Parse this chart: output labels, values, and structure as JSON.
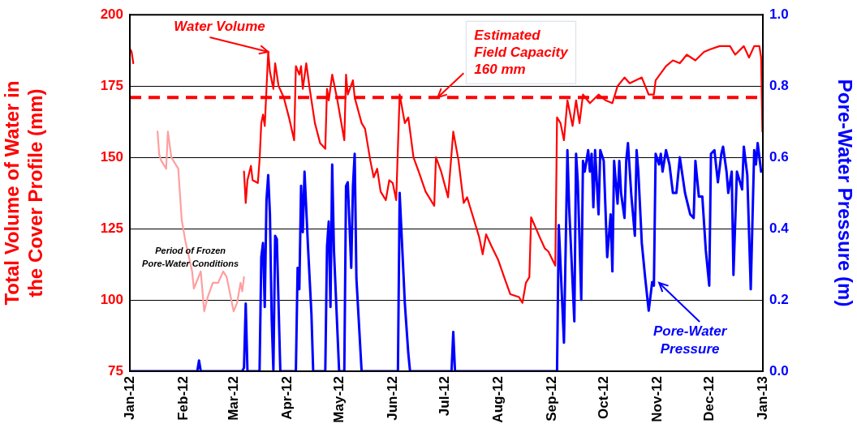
{
  "chart_data": {
    "type": "line",
    "ylabel": "Total Volume of Water in the Cover Profile (mm)",
    "y2label": "Pore-Water Pressure (m)",
    "xlim": [
      "2012-01-01",
      "2013-01-01"
    ],
    "xticks": [
      {
        "value": "2012-01-01",
        "label": "Jan-12"
      },
      {
        "value": "2012-02-01",
        "label": "Feb-12"
      },
      {
        "value": "2012-03-01",
        "label": "Mar-12"
      },
      {
        "value": "2012-04-01",
        "label": "Apr-12"
      },
      {
        "value": "2012-05-01",
        "label": "May-12"
      },
      {
        "value": "2012-06-01",
        "label": "Jun-12"
      },
      {
        "value": "2012-07-01",
        "label": "Jul-12"
      },
      {
        "value": "2012-08-01",
        "label": "Aug-12"
      },
      {
        "value": "2012-09-01",
        "label": "Sep-12"
      },
      {
        "value": "2012-10-01",
        "label": "Oct-12"
      },
      {
        "value": "2012-11-01",
        "label": "Nov-12"
      },
      {
        "value": "2012-12-01",
        "label": "Dec-12"
      },
      {
        "value": "2013-01-01",
        "label": "Jan-13"
      }
    ],
    "ylim": [
      75,
      200
    ],
    "yticks": [
      75,
      100,
      125,
      150,
      175,
      200
    ],
    "y2lim": [
      0,
      1
    ],
    "y2ticks": [
      {
        "value": 0,
        "label": "0.0"
      },
      {
        "value": 0.2,
        "label": "0.2"
      },
      {
        "value": 0.4,
        "label": "0.4"
      },
      {
        "value": 0.6,
        "label": "0.6"
      },
      {
        "value": 0.8,
        "label": "0.8"
      },
      {
        "value": 1,
        "label": "1.0"
      }
    ],
    "grid": "y",
    "legend": false,
    "marker": "none",
    "line_style": "solid",
    "series": [
      {
        "color": "#ff0000",
        "x": [
          "2012-01-01",
          "2012-01-02",
          "2012-01-03",
          "2012-01-10",
          "2012-03-07",
          "2012-03-08",
          "2012-03-09",
          "2012-03-11",
          "2012-03-12",
          "2012-03-15",
          "2012-03-16",
          "2012-03-17",
          "2012-03-18",
          "2012-03-19",
          "2012-03-20",
          "2012-03-21",
          "2012-03-22",
          "2012-03-24",
          "2012-03-25",
          "2012-03-27",
          "2012-03-30",
          "2012-04-02",
          "2012-04-05",
          "2012-04-06",
          "2012-04-08",
          "2012-04-09",
          "2012-04-10",
          "2012-04-12",
          "2012-04-14",
          "2012-04-17",
          "2012-04-20",
          "2012-04-23",
          "2012-04-24",
          "2012-04-25",
          "2012-04-27",
          "2012-04-30",
          "2012-05-04",
          "2012-05-05",
          "2012-05-06",
          "2012-05-09",
          "2012-05-10",
          "2012-05-14",
          "2012-05-16",
          "2012-05-19",
          "2012-05-21",
          "2012-05-23",
          "2012-05-25",
          "2012-05-28",
          "2012-05-30",
          "2012-06-01",
          "2012-06-03",
          "2012-06-05",
          "2012-06-08",
          "2012-06-10",
          "2012-06-13",
          "2012-06-16",
          "2012-06-20",
          "2012-06-25",
          "2012-06-26",
          "2012-06-29",
          "2012-07-03",
          "2012-07-06",
          "2012-07-09",
          "2012-07-12",
          "2012-07-14",
          "2012-07-17",
          "2012-07-21",
          "2012-07-23",
          "2012-07-25",
          "2012-07-28",
          "2012-08-01",
          "2012-08-05",
          "2012-08-08",
          "2012-08-13",
          "2012-08-15",
          "2012-08-17",
          "2012-08-19",
          "2012-08-20",
          "2012-08-25",
          "2012-08-28",
          "2012-08-30",
          "2012-09-03",
          "2012-09-04",
          "2012-09-06",
          "2012-09-08",
          "2012-09-10",
          "2012-09-13",
          "2012-09-15",
          "2012-09-17",
          "2012-09-19",
          "2012-09-23",
          "2012-09-28",
          "2012-10-02",
          "2012-10-06",
          "2012-10-09",
          "2012-10-13",
          "2012-10-16",
          "2012-10-23",
          "2012-10-27",
          "2012-10-30",
          "2012-10-31",
          "2012-11-06",
          "2012-11-10",
          "2012-11-14",
          "2012-11-18",
          "2012-11-23",
          "2012-11-28",
          "2012-12-02",
          "2012-12-07",
          "2012-12-13",
          "2012-12-16",
          "2012-12-21",
          "2012-12-24",
          "2012-12-27",
          "2012-12-30",
          "2012-12-31",
          "2012-12-31T18:00"
        ],
        "values": [
          188,
          187,
          183,
          null,
          145,
          134,
          142,
          147,
          142,
          141,
          149,
          162,
          165,
          161,
          174,
          187,
          180,
          174,
          183,
          175,
          171,
          164,
          156,
          182,
          179,
          182,
          174,
          183,
          174,
          162,
          155,
          153,
          174,
          170,
          179,
          170,
          156,
          179,
          172,
          177,
          171,
          162,
          160,
          149,
          143,
          146,
          138,
          135,
          142,
          141,
          135,
          172,
          162,
          164,
          150,
          145,
          138,
          133,
          150,
          145,
          136,
          159,
          149,
          134,
          136,
          130,
          122,
          116,
          123,
          119,
          114,
          107,
          102,
          101,
          99,
          106,
          108,
          129,
          122,
          118,
          117,
          112,
          164,
          162,
          156,
          170,
          161,
          170,
          162,
          172,
          169,
          172,
          170,
          169,
          175,
          178,
          176,
          178,
          172,
          172,
          177,
          182,
          184,
          183,
          186,
          184,
          187,
          188,
          189,
          189,
          186,
          189,
          185,
          189,
          189,
          185,
          159
        ]
      },
      {
        "color": "#ff9f9f",
        "x": [
          "2012-01-17",
          "2012-01-18",
          "2012-01-19",
          "2012-01-22",
          "2012-01-23",
          "2012-01-25",
          "2012-01-29",
          "2012-01-31",
          "2012-02-02",
          "2012-02-06",
          "2012-02-07",
          "2012-02-11",
          "2012-02-13",
          "2012-02-15",
          "2012-02-18",
          "2012-02-21",
          "2012-02-24",
          "2012-02-26",
          "2012-03-01",
          "2012-03-03",
          "2012-03-05",
          "2012-03-06",
          "2012-03-07"
        ],
        "values": [
          159,
          151,
          149,
          146,
          159,
          150,
          146,
          128,
          121,
          110,
          104,
          110,
          96,
          101,
          106,
          106,
          110,
          108,
          96,
          99,
          106,
          103,
          108
        ]
      },
      {
        "color": "#0000ff",
        "axis": "y2",
        "x": [
          "2012-01-01",
          "2012-02-09",
          "2012-02-10",
          "2012-02-11",
          "2012-03-06",
          "2012-03-07",
          "2012-03-08",
          "2012-03-09",
          "2012-03-16",
          "2012-03-17",
          "2012-03-18",
          "2012-03-19",
          "2012-03-20",
          "2012-03-21",
          "2012-03-22",
          "2012-03-23",
          "2012-03-24",
          "2012-03-25",
          "2012-03-26",
          "2012-03-28",
          "2012-04-06",
          "2012-04-07",
          "2012-04-08",
          "2012-04-09",
          "2012-04-10",
          "2012-04-11",
          "2012-04-13",
          "2012-04-15",
          "2012-04-16",
          "2012-04-23",
          "2012-04-24",
          "2012-04-25",
          "2012-04-26",
          "2012-04-27",
          "2012-04-28",
          "2012-05-01",
          "2012-05-04",
          "2012-05-05",
          "2012-05-06",
          "2012-05-08",
          "2012-05-09",
          "2012-05-10",
          "2012-05-11",
          "2012-05-14",
          "2012-06-04",
          "2012-06-05",
          "2012-06-08",
          "2012-06-10",
          "2012-06-11",
          "2012-07-05",
          "2012-07-06",
          "2012-07-07",
          "2012-09-04",
          "2012-09-05",
          "2012-09-08",
          "2012-09-10",
          "2012-09-11",
          "2012-09-14",
          "2012-09-15",
          "2012-09-16",
          "2012-09-18",
          "2012-09-19",
          "2012-09-20",
          "2012-09-22",
          "2012-09-23",
          "2012-09-24",
          "2012-09-25",
          "2012-09-26",
          "2012-09-28",
          "2012-09-29",
          "2012-10-01",
          "2012-10-03",
          "2012-10-05",
          "2012-10-06",
          "2012-10-07",
          "2012-10-09",
          "2012-10-10",
          "2012-10-11",
          "2012-10-13",
          "2012-10-14",
          "2012-10-15",
          "2012-10-17",
          "2012-10-19",
          "2012-10-20",
          "2012-10-21",
          "2012-10-23",
          "2012-10-25",
          "2012-10-27",
          "2012-10-29",
          "2012-10-30",
          "2012-10-31",
          "2012-11-02",
          "2012-11-03",
          "2012-11-04",
          "2012-11-06",
          "2012-11-08",
          "2012-11-10",
          "2012-11-12",
          "2012-11-14",
          "2012-11-17",
          "2012-11-20",
          "2012-11-22",
          "2012-11-23",
          "2012-11-25",
          "2012-11-27",
          "2012-11-29",
          "2012-12-01",
          "2012-12-02",
          "2012-12-04",
          "2012-12-06",
          "2012-12-08",
          "2012-12-09",
          "2012-12-11",
          "2012-12-12",
          "2012-12-14",
          "2012-12-15",
          "2012-12-17",
          "2012-12-20",
          "2012-12-21",
          "2012-12-23",
          "2012-12-25",
          "2012-12-27",
          "2012-12-28",
          "2012-12-29",
          "2012-12-31"
        ],
        "values": [
          0,
          0,
          0.03,
          0,
          0,
          0.01,
          0.19,
          0,
          0,
          0.32,
          0.36,
          0.18,
          0.48,
          0.55,
          0.44,
          0.15,
          0,
          0.38,
          0.37,
          0,
          0,
          0.29,
          0.23,
          0.52,
          0.39,
          0.56,
          0.35,
          0.16,
          0,
          0,
          0.35,
          0.42,
          0.18,
          0.58,
          0.34,
          0,
          0,
          0.52,
          0.53,
          0.29,
          0.52,
          0.61,
          0.26,
          0,
          0,
          0.5,
          0.19,
          0.05,
          0,
          0,
          0.11,
          0,
          0,
          0.41,
          0.08,
          0.62,
          0.46,
          0.14,
          0.61,
          0.53,
          0.2,
          0.59,
          0.56,
          0.62,
          0.56,
          0.61,
          0.46,
          0.62,
          0.44,
          0.62,
          0.59,
          0.32,
          0.44,
          0.28,
          0.59,
          0.47,
          0.59,
          0.5,
          0.43,
          0.59,
          0.64,
          0.49,
          0.38,
          0.62,
          0.56,
          0.36,
          0.26,
          0.17,
          0.25,
          0.24,
          0.61,
          0.58,
          0.61,
          0.56,
          0.62,
          0.58,
          0.5,
          0.5,
          0.6,
          0.5,
          0.44,
          0.43,
          0.59,
          0.49,
          0.49,
          0.34,
          0.24,
          0.61,
          0.62,
          0.53,
          0.61,
          0.63,
          0.56,
          0.5,
          0.56,
          0.27,
          0.56,
          0.51,
          0.63,
          0.55,
          0.23,
          0.62,
          0.58,
          0.64,
          0.56
        ]
      }
    ],
    "ref_lines": [
      {
        "axis": "y",
        "value": 171,
        "color": "#ff0000",
        "line_style": "dashed"
      }
    ],
    "annotations": [
      {
        "text": "Water Volume",
        "x": "2012-03-21",
        "y": 187
      },
      {
        "text": "Estimated Field Capacity 160 mm",
        "x": "2012-06-27",
        "y": 171
      },
      {
        "text": "Period of Frozen Pore-Water Conditions",
        "x": "2012-02-05",
        "y": 115
      },
      {
        "text": "Pore-Water Pressure",
        "x": "2012-11-02",
        "y": 106
      }
    ]
  }
}
